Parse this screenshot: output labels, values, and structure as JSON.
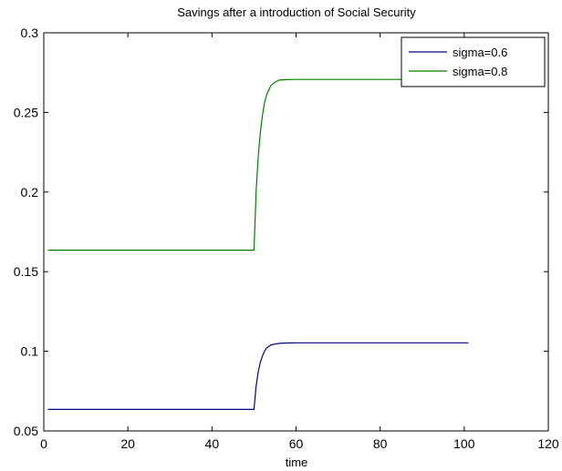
{
  "chart_data": {
    "type": "line",
    "title": "Savings after a introduction of Social Security",
    "xlabel": "time",
    "ylabel": "",
    "xlim": [
      0,
      120
    ],
    "ylim": [
      0.05,
      0.3
    ],
    "xticks": [
      0,
      20,
      40,
      60,
      80,
      100,
      120
    ],
    "yticks": [
      0.05,
      0.1,
      0.15,
      0.2,
      0.25,
      0.3
    ],
    "xtick_labels": [
      "0",
      "20",
      "40",
      "60",
      "80",
      "100",
      "120"
    ],
    "ytick_labels": [
      "0.05",
      "0.1",
      "0.15",
      "0.2",
      "0.25",
      "0.3"
    ],
    "grid": false,
    "legend_position": "top-right",
    "series": [
      {
        "name": "sigma=0.6",
        "color": "#00007f",
        "x": [
          1,
          50,
          50.5,
          51,
          51.5,
          52,
          52.5,
          53,
          54,
          55,
          56,
          58,
          60,
          70,
          80,
          90,
          101
        ],
        "values": [
          0.0635,
          0.0635,
          0.078,
          0.087,
          0.093,
          0.097,
          0.1,
          0.102,
          0.104,
          0.1045,
          0.105,
          0.1052,
          0.1053,
          0.1053,
          0.1053,
          0.1053,
          0.1053
        ]
      },
      {
        "name": "sigma=0.8",
        "color": "#007f00",
        "x": [
          1,
          50,
          50.5,
          51,
          51.5,
          52,
          52.5,
          53,
          54,
          55,
          56,
          58,
          60,
          70,
          80,
          90,
          101
        ],
        "values": [
          0.1635,
          0.1635,
          0.2,
          0.222,
          0.237,
          0.248,
          0.256,
          0.261,
          0.267,
          0.269,
          0.2703,
          0.2706,
          0.2707,
          0.2707,
          0.2707,
          0.2707,
          0.2707
        ]
      }
    ]
  }
}
